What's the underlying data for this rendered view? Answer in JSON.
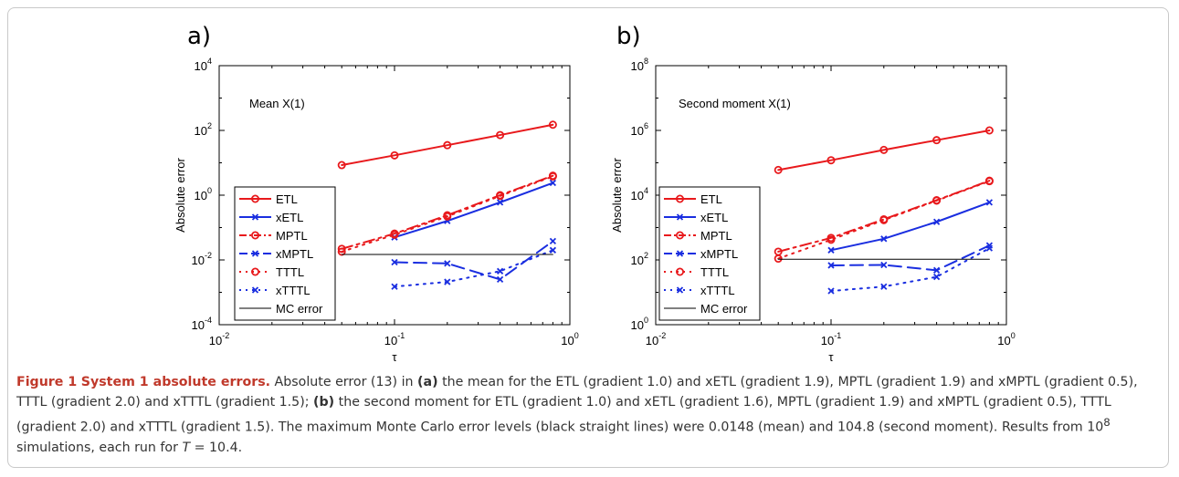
{
  "chart_data": [
    {
      "type": "line",
      "panel": "a)",
      "annotation": "Mean X(1)",
      "xlabel": "τ",
      "ylabel": "Absolute error",
      "xscale": "log",
      "yscale": "log",
      "xlim": [
        0.01,
        1
      ],
      "ylim": [
        0.0001,
        10000
      ],
      "x_ticks": [
        {
          "b": "10",
          "e": "-2"
        },
        {
          "b": "10",
          "e": "-1"
        },
        {
          "b": "10",
          "e": "0"
        }
      ],
      "y_ticks": [
        {
          "b": "10",
          "e": "-4"
        },
        {
          "b": "10",
          "e": "-2"
        },
        {
          "b": "10",
          "e": "0"
        },
        {
          "b": "10",
          "e": "2"
        },
        {
          "b": "10",
          "e": "4"
        }
      ],
      "legend_position": "lower-left",
      "series": [
        {
          "name": "ETL",
          "color": "#e8191c",
          "line": "solid",
          "marker": "o",
          "x": [
            0.05,
            0.1,
            0.2,
            0.4,
            0.8
          ],
          "y": [
            8.5,
            17,
            35,
            72,
            150
          ]
        },
        {
          "name": "xETL",
          "color": "#1a2ee0",
          "line": "solid",
          "marker": "x",
          "x": [
            0.1,
            0.2,
            0.4,
            0.8
          ],
          "y": [
            0.05,
            0.16,
            0.6,
            2.4
          ]
        },
        {
          "name": "MPTL",
          "color": "#e8191c",
          "line": "dashdot",
          "marker": "o",
          "x": [
            0.05,
            0.1,
            0.2,
            0.4,
            0.8
          ],
          "y": [
            0.022,
            0.065,
            0.24,
            1.0,
            4.0
          ]
        },
        {
          "name": "xMPTL",
          "color": "#1a2ee0",
          "line": "dashed",
          "marker": "x",
          "x": [
            0.1,
            0.2,
            0.4,
            0.8
          ],
          "y": [
            0.0085,
            0.0078,
            0.0025,
            0.038
          ]
        },
        {
          "name": "TTTL",
          "color": "#e8191c",
          "line": "dotted",
          "marker": "o",
          "x": [
            0.05,
            0.1,
            0.2,
            0.4,
            0.8
          ],
          "y": [
            0.018,
            0.06,
            0.22,
            0.95,
            3.8
          ]
        },
        {
          "name": "xTTTL",
          "color": "#1a2ee0",
          "line": "dotted",
          "marker": "x",
          "x": [
            0.1,
            0.2,
            0.4,
            0.8
          ],
          "y": [
            0.0015,
            0.0021,
            0.0045,
            0.02
          ]
        },
        {
          "name": "MC error",
          "color": "#000000",
          "line": "solid",
          "marker": "none",
          "x": [
            0.05,
            0.8
          ],
          "y": [
            0.0148,
            0.0148
          ]
        }
      ]
    },
    {
      "type": "line",
      "panel": "b)",
      "annotation": "Second moment X(1)",
      "xlabel": "τ",
      "ylabel": "Absolute error",
      "xscale": "log",
      "yscale": "log",
      "xlim": [
        0.01,
        1
      ],
      "ylim": [
        1,
        100000000
      ],
      "x_ticks": [
        {
          "b": "10",
          "e": "-2"
        },
        {
          "b": "10",
          "e": "-1"
        },
        {
          "b": "10",
          "e": "0"
        }
      ],
      "y_ticks": [
        {
          "b": "10",
          "e": "0"
        },
        {
          "b": "10",
          "e": "2"
        },
        {
          "b": "10",
          "e": "4"
        },
        {
          "b": "10",
          "e": "6"
        },
        {
          "b": "10",
          "e": "8"
        }
      ],
      "legend_position": "lower-left",
      "series": [
        {
          "name": "ETL",
          "color": "#e8191c",
          "line": "solid",
          "marker": "o",
          "x": [
            0.05,
            0.1,
            0.2,
            0.4,
            0.8
          ],
          "y": [
            60000,
            120000,
            250000,
            500000,
            1000000
          ]
        },
        {
          "name": "xETL",
          "color": "#1a2ee0",
          "line": "solid",
          "marker": "x",
          "x": [
            0.1,
            0.2,
            0.4,
            0.8
          ],
          "y": [
            200,
            450,
            1500,
            6000
          ]
        },
        {
          "name": "MPTL",
          "color": "#e8191c",
          "line": "dashdot",
          "marker": "o",
          "x": [
            0.05,
            0.1,
            0.2,
            0.4,
            0.8
          ],
          "y": [
            180,
            480,
            1800,
            7000,
            28000
          ]
        },
        {
          "name": "xMPTL",
          "color": "#1a2ee0",
          "line": "dashed",
          "marker": "x",
          "x": [
            0.1,
            0.2,
            0.4,
            0.8
          ],
          "y": [
            68,
            70,
            48,
            280
          ]
        },
        {
          "name": "TTTL",
          "color": "#e8191c",
          "line": "dotted",
          "marker": "o",
          "x": [
            0.05,
            0.1,
            0.2,
            0.4,
            0.8
          ],
          "y": [
            110,
            420,
            1700,
            6800,
            27000
          ]
        },
        {
          "name": "xTTTL",
          "color": "#1a2ee0",
          "line": "dotted",
          "marker": "x",
          "x": [
            0.1,
            0.2,
            0.4,
            0.8
          ],
          "y": [
            11,
            15,
            30,
            230
          ]
        },
        {
          "name": "MC error",
          "color": "#000000",
          "line": "solid",
          "marker": "none",
          "x": [
            0.05,
            0.8
          ],
          "y": [
            104.8,
            104.8
          ]
        }
      ]
    }
  ],
  "caption": {
    "figure_label": "Figure 1",
    "title": "System 1 absolute errors.",
    "t1": " Absolute error (13) in ",
    "ref_a": "(a)",
    "t2": " the mean for the ETL (gradient 1.0) and xETL (gradient 1.9), MPTL (gradient 1.9) and xMPTL (gradient 0.5), TTTL (gradient 2.0) and xTTTL (gradient 1.5); ",
    "ref_b": "(b)",
    "t3": " the second moment for ETL (gradient 1.0) and xETL (gradient 1.6), MPTL (gradient 1.9) and xMPTL (gradient 0.5), TTTL (gradient 2.0) and xTTTL (gradient 1.5). The maximum Monte Carlo error levels (black straight lines) were 0.0148 (mean) and 104.8 (second moment). Results from 10",
    "sup8": "8",
    "t4": " simulations, each run for ",
    "T": "T",
    "t5": " = 10.4."
  }
}
